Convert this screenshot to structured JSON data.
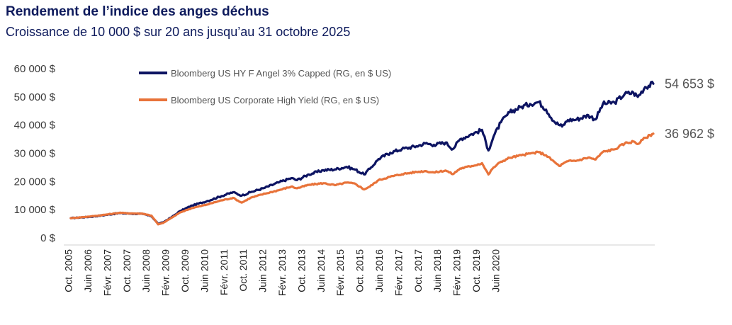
{
  "header": {
    "title": "Rendement de l’indice des anges déchus",
    "subtitle": "Croissance de 10 000 $ sur 20 ans jusqu’au 31 octobre 2025"
  },
  "chart_data": {
    "type": "line",
    "title": "Rendement de l’indice des anges déchus",
    "subtitle": "Croissance de 10 000 $ sur 20 ans jusqu’au 31 octobre 2025",
    "xlabel": "",
    "ylabel": "",
    "ylim": [
      0,
      60000
    ],
    "y_ticks": [
      "0 $",
      "10 000 $",
      "20 000 $",
      "30 000 $",
      "40 000 $",
      "50 000 $",
      "60 000 $"
    ],
    "x_range": [
      2005.833,
      2025.833
    ],
    "x_ticks": [
      {
        "label": "Oct. 2005",
        "t": 2005.75
      },
      {
        "label": "Juin 2006",
        "t": 2006.417
      },
      {
        "label": "Févr. 2007",
        "t": 2007.083
      },
      {
        "label": "Oct. 2007",
        "t": 2007.75
      },
      {
        "label": "Juin 2008",
        "t": 2008.417
      },
      {
        "label": "Févr. 2009",
        "t": 2009.083
      },
      {
        "label": "Oct. 2009",
        "t": 2009.75
      },
      {
        "label": "Juin 2010",
        "t": 2010.417
      },
      {
        "label": "Févr. 2011",
        "t": 2011.083
      },
      {
        "label": "Oct. 2011",
        "t": 2011.75
      },
      {
        "label": "Juin 2012",
        "t": 2012.417
      },
      {
        "label": "Févr. 2013",
        "t": 2013.083
      },
      {
        "label": "Oct. 2013",
        "t": 2013.75
      },
      {
        "label": "Juin 2014",
        "t": 2014.417
      },
      {
        "label": "Févr. 2015",
        "t": 2015.083
      },
      {
        "label": "Oct. 2015",
        "t": 2015.75
      },
      {
        "label": "Juin 2016",
        "t": 2016.417
      },
      {
        "label": "Févr. 2017",
        "t": 2017.083
      },
      {
        "label": "Oct. 2017",
        "t": 2017.75
      },
      {
        "label": "Juin 2018",
        "t": 2018.417
      },
      {
        "label": "Févr. 2019",
        "t": 2019.083
      },
      {
        "label": "Oct. 2019",
        "t": 2019.75
      },
      {
        "label": "Juin 2020",
        "t": 2020.417
      }
    ],
    "grid": false,
    "legend_position": "top-center",
    "series": [
      {
        "name": "Bloomberg US HY F Angel 3% Capped (RG, en $ US)",
        "color": "#0d1462",
        "end_label": "54 653 $",
        "end_value": 54653,
        "points": [
          [
            2005.83,
            7000
          ],
          [
            2006.5,
            7500
          ],
          [
            2007.0,
            8100
          ],
          [
            2007.5,
            8800
          ],
          [
            2007.9,
            8600
          ],
          [
            2008.3,
            8500
          ],
          [
            2008.6,
            7700
          ],
          [
            2008.83,
            5000
          ],
          [
            2009.0,
            5500
          ],
          [
            2009.3,
            7400
          ],
          [
            2009.6,
            9600
          ],
          [
            2010.0,
            11500
          ],
          [
            2010.5,
            13000
          ],
          [
            2011.0,
            14800
          ],
          [
            2011.4,
            16200
          ],
          [
            2011.7,
            15000
          ],
          [
            2012.0,
            16200
          ],
          [
            2012.5,
            17800
          ],
          [
            2013.0,
            19800
          ],
          [
            2013.4,
            21200
          ],
          [
            2013.6,
            20500
          ],
          [
            2014.0,
            22500
          ],
          [
            2014.5,
            24000
          ],
          [
            2014.9,
            24300
          ],
          [
            2015.3,
            25200
          ],
          [
            2015.6,
            24200
          ],
          [
            2015.9,
            22500
          ],
          [
            2016.1,
            24500
          ],
          [
            2016.4,
            28000
          ],
          [
            2016.8,
            30200
          ],
          [
            2017.2,
            31500
          ],
          [
            2017.7,
            32500
          ],
          [
            2018.0,
            33500
          ],
          [
            2018.3,
            33000
          ],
          [
            2018.7,
            33800
          ],
          [
            2018.95,
            31500
          ],
          [
            2019.2,
            35000
          ],
          [
            2019.6,
            36800
          ],
          [
            2019.95,
            38300
          ],
          [
            2020.17,
            31000
          ],
          [
            2020.35,
            36000
          ],
          [
            2020.6,
            41000
          ],
          [
            2020.9,
            44500
          ],
          [
            2021.3,
            46500
          ],
          [
            2021.6,
            47500
          ],
          [
            2021.9,
            48200
          ],
          [
            2022.15,
            45500
          ],
          [
            2022.45,
            41000
          ],
          [
            2022.7,
            39500
          ],
          [
            2022.9,
            41800
          ],
          [
            2023.2,
            42000
          ],
          [
            2023.6,
            43500
          ],
          [
            2023.85,
            42000
          ],
          [
            2024.1,
            47500
          ],
          [
            2024.5,
            48000
          ],
          [
            2024.85,
            51000
          ],
          [
            2025.15,
            51500
          ],
          [
            2025.3,
            50000
          ],
          [
            2025.55,
            53500
          ],
          [
            2025.833,
            54653
          ]
        ]
      },
      {
        "name": "Bloomberg US Corporate High Yield (RG, en $ US)",
        "color": "#e8733a",
        "end_label": "36 962 $",
        "end_value": 36962,
        "points": [
          [
            2005.83,
            7000
          ],
          [
            2006.5,
            7600
          ],
          [
            2007.0,
            8200
          ],
          [
            2007.5,
            8900
          ],
          [
            2007.9,
            8700
          ],
          [
            2008.3,
            8600
          ],
          [
            2008.6,
            7900
          ],
          [
            2008.83,
            4800
          ],
          [
            2009.0,
            5300
          ],
          [
            2009.3,
            7200
          ],
          [
            2009.6,
            9100
          ],
          [
            2010.0,
            10600
          ],
          [
            2010.5,
            11800
          ],
          [
            2011.0,
            13300
          ],
          [
            2011.4,
            14200
          ],
          [
            2011.7,
            12500
          ],
          [
            2012.0,
            14200
          ],
          [
            2012.5,
            15700
          ],
          [
            2013.0,
            17000
          ],
          [
            2013.4,
            18200
          ],
          [
            2013.6,
            17600
          ],
          [
            2014.0,
            18800
          ],
          [
            2014.5,
            19400
          ],
          [
            2014.9,
            18700
          ],
          [
            2015.3,
            19600
          ],
          [
            2015.6,
            19200
          ],
          [
            2015.9,
            17200
          ],
          [
            2016.1,
            18200
          ],
          [
            2016.4,
            20500
          ],
          [
            2016.8,
            21700
          ],
          [
            2017.2,
            22600
          ],
          [
            2017.7,
            23400
          ],
          [
            2018.0,
            23700
          ],
          [
            2018.3,
            23200
          ],
          [
            2018.7,
            23900
          ],
          [
            2018.95,
            22600
          ],
          [
            2019.2,
            24600
          ],
          [
            2019.6,
            25500
          ],
          [
            2019.95,
            26500
          ],
          [
            2020.17,
            22500
          ],
          [
            2020.35,
            25000
          ],
          [
            2020.6,
            27000
          ],
          [
            2020.9,
            28400
          ],
          [
            2021.3,
            29300
          ],
          [
            2021.6,
            29900
          ],
          [
            2021.9,
            30400
          ],
          [
            2022.15,
            29300
          ],
          [
            2022.45,
            26800
          ],
          [
            2022.6,
            25500
          ],
          [
            2022.9,
            27200
          ],
          [
            2023.2,
            27400
          ],
          [
            2023.6,
            28500
          ],
          [
            2023.85,
            27800
          ],
          [
            2024.1,
            30500
          ],
          [
            2024.5,
            31400
          ],
          [
            2024.85,
            33500
          ],
          [
            2025.15,
            34200
          ],
          [
            2025.3,
            33300
          ],
          [
            2025.55,
            35500
          ],
          [
            2025.833,
            36962
          ]
        ]
      }
    ]
  }
}
